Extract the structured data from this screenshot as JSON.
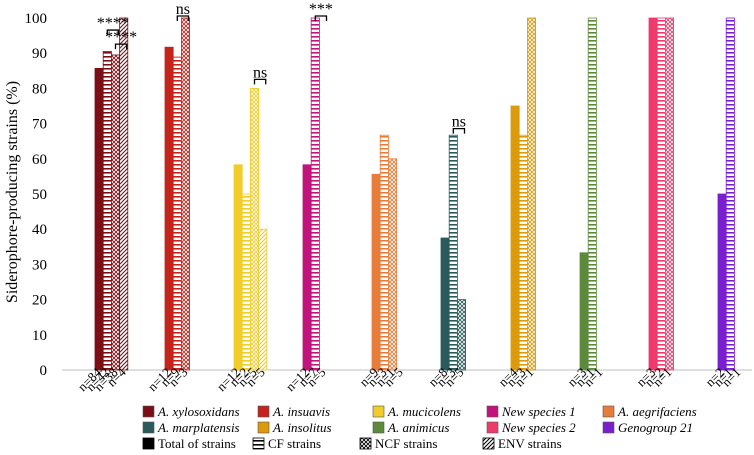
{
  "chart_data": {
    "type": "bar",
    "ylabel": "Siderophore-producing strains (%)",
    "xlabel": "",
    "ylim": [
      0,
      100
    ],
    "yticks": [
      "0",
      "10",
      "20",
      "30",
      "40",
      "50",
      "60",
      "70",
      "80",
      "90",
      "100"
    ],
    "strain_types": [
      {
        "key": "total",
        "label": "Total of strains",
        "pattern": "solid"
      },
      {
        "key": "cf",
        "label": "CF strains",
        "pattern": "horizontal"
      },
      {
        "key": "ncf",
        "label": "NCF strains",
        "pattern": "cross"
      },
      {
        "key": "env",
        "label": "ENV strains",
        "pattern": "diagonal"
      }
    ],
    "groups": [
      {
        "species": "A. xylosoxidans",
        "color": "#7b0f15",
        "values": [
          85.7,
          90.5,
          89.5,
          100
        ],
        "n_labels": [
          "n=84",
          "n=42",
          "n=38",
          "n=4"
        ]
      },
      {
        "species": "A. insuavis",
        "color": "#c5231b",
        "values": [
          91.7,
          88.9,
          100,
          null
        ],
        "n_labels": [
          "n=12",
          "n=9",
          "n=3",
          ""
        ]
      },
      {
        "species": "A. mucicolens",
        "color": "#f1cc2a",
        "values": [
          58.3,
          50,
          80,
          40
        ],
        "n_labels": [
          "n=12",
          "n=2",
          "n=5",
          "n=5"
        ]
      },
      {
        "species": "New species 1",
        "color": "#c2127b",
        "values": [
          58.3,
          100,
          null,
          null
        ],
        "n_labels": [
          "n=12",
          "n=7",
          "n=5",
          ""
        ]
      },
      {
        "species": "A. aegrifaciens",
        "color": "#e87c3a",
        "values": [
          55.6,
          66.7,
          60,
          null
        ],
        "n_labels": [
          "n=9",
          "n=3",
          "n=1",
          "n=5"
        ]
      },
      {
        "species": "A. marplatensis",
        "color": "#2a5a5a",
        "values": [
          37.5,
          66.7,
          20,
          null
        ],
        "n_labels": [
          "n=8",
          "n=3",
          "n=5",
          ""
        ]
      },
      {
        "species": "A. insolitus",
        "color": "#dd9a0a",
        "values": [
          75,
          66.7,
          100,
          null
        ],
        "n_labels": [
          "n=4",
          "n=3",
          "n=1",
          ""
        ]
      },
      {
        "species": "A. animicus",
        "color": "#5b8a3a",
        "values": [
          33.3,
          100,
          null,
          null
        ],
        "n_labels": [
          "n=3",
          "n=1",
          "n=1",
          ""
        ]
      },
      {
        "species": "New species 2",
        "color": "#ee3b6c",
        "values": [
          100,
          100,
          100,
          null
        ],
        "n_labels": [
          "n=3",
          "n=2",
          "n=1",
          ""
        ]
      },
      {
        "species": "Genogroup 21",
        "color": "#7a1fd0",
        "values": [
          50,
          100,
          null,
          null
        ],
        "n_labels": [
          "n=2",
          "n=1",
          "n=1",
          ""
        ]
      }
    ],
    "significance": [
      {
        "group": 0,
        "from": 1,
        "to": 2,
        "level": 96,
        "label": "****"
      },
      {
        "group": 0,
        "from": 2,
        "to": 3,
        "level": 92,
        "label": "****"
      },
      {
        "group": 1,
        "from": 1,
        "to": 2,
        "level": 100,
        "label": "ns"
      },
      {
        "group": 2,
        "from": 2,
        "to": 3,
        "level": 82,
        "label": "ns"
      },
      {
        "group": 3,
        "from": 1,
        "to": 2,
        "level": 100,
        "label": "***"
      },
      {
        "group": 5,
        "from": 1,
        "to": 2,
        "level": 68,
        "label": "ns"
      }
    ],
    "legend": {
      "placement": "bottom",
      "species": [
        {
          "label": "A. xylosoxidans",
          "color": "#7b0f15"
        },
        {
          "label": "A. insuavis",
          "color": "#c5231b"
        },
        {
          "label": "A. mucicolens",
          "color": "#f1cc2a"
        },
        {
          "label": "New species 1",
          "color": "#c2127b"
        },
        {
          "label": "A. aegrifaciens",
          "color": "#e87c3a"
        },
        {
          "label": "A. marplatensis",
          "color": "#2a5a5a"
        },
        {
          "label": "A. insolitus",
          "color": "#dd9a0a"
        },
        {
          "label": "A. animicus",
          "color": "#5b8a3a"
        },
        {
          "label": "New species 2",
          "color": "#ee3b6c"
        },
        {
          "label": "Genogroup 21",
          "color": "#7a1fd0"
        }
      ]
    }
  }
}
